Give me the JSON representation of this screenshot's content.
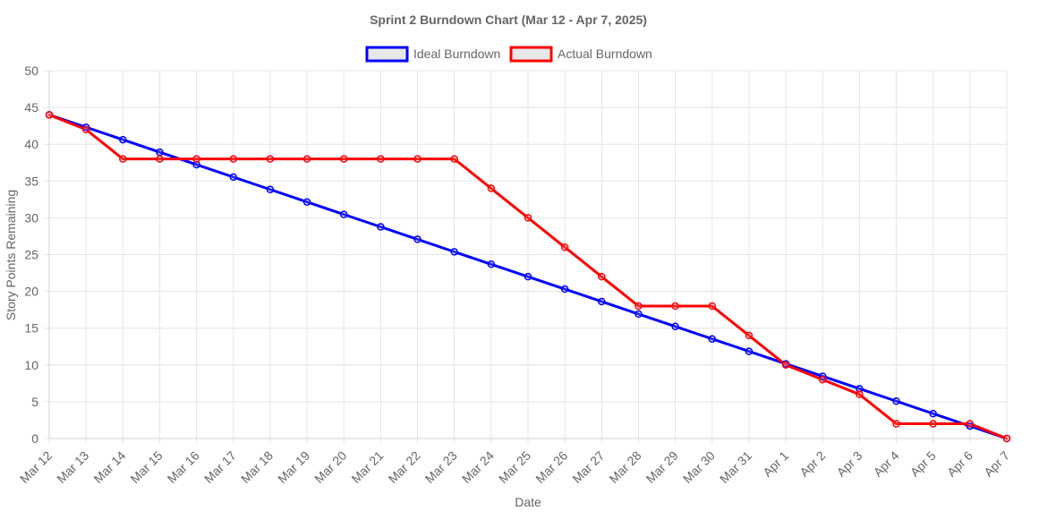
{
  "chart_data": {
    "type": "line",
    "title": "Sprint 2 Burndown Chart (Mar 12 - Apr 7, 2025)",
    "xlabel": "Date",
    "ylabel": "Story Points Remaining",
    "ylim": [
      0,
      50
    ],
    "y_ticks": [
      "0",
      "5",
      "10",
      "15",
      "20",
      "25",
      "30",
      "35",
      "40",
      "45",
      "50"
    ],
    "grid": true,
    "legend_position": "top-center",
    "categories": [
      "Mar 12",
      "Mar 13",
      "Mar 14",
      "Mar 15",
      "Mar 16",
      "Mar 17",
      "Mar 18",
      "Mar 19",
      "Mar 20",
      "Mar 21",
      "Mar 22",
      "Mar 23",
      "Mar 24",
      "Mar 25",
      "Mar 26",
      "Mar 27",
      "Mar 28",
      "Mar 29",
      "Mar 30",
      "Mar 31",
      "Apr 1",
      "Apr 2",
      "Apr 3",
      "Apr 4",
      "Apr 5",
      "Apr 6",
      "Apr 7"
    ],
    "series": [
      {
        "name": "Ideal Burndown",
        "color": "#0000ff",
        "values": [
          44,
          42.31,
          40.62,
          38.92,
          37.23,
          35.54,
          33.85,
          32.15,
          30.46,
          28.77,
          27.08,
          25.38,
          23.69,
          22,
          20.31,
          18.62,
          16.92,
          15.23,
          13.54,
          11.85,
          10.15,
          8.46,
          6.77,
          5.08,
          3.38,
          1.69,
          0
        ]
      },
      {
        "name": "Actual Burndown",
        "color": "#ff0000",
        "values": [
          44,
          42,
          38,
          38,
          38,
          38,
          38,
          38,
          38,
          38,
          38,
          38,
          34,
          30,
          26,
          22,
          18,
          18,
          18,
          14,
          10,
          8,
          6,
          2,
          2,
          2,
          0
        ]
      }
    ]
  }
}
